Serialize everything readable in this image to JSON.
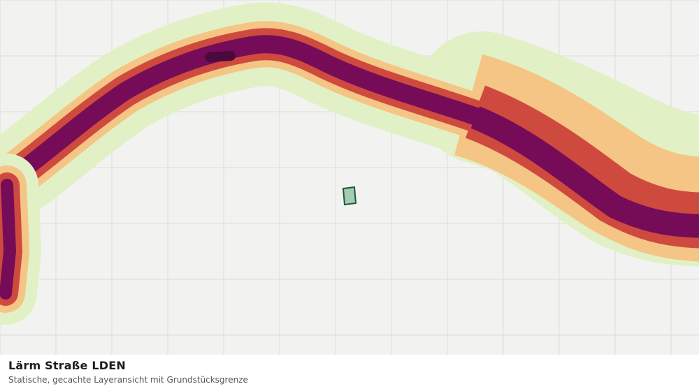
{
  "map": {
    "layer": "Lärm Straße LDEN",
    "noise_classes": [
      {
        "name": "lowest",
        "color": "#e2f0c6"
      },
      {
        "name": "low",
        "color": "#f4c584"
      },
      {
        "name": "medium",
        "color": "#cf4a3e"
      },
      {
        "name": "high",
        "color": "#760c58"
      },
      {
        "name": "highest",
        "color": "#4b0a3e"
      }
    ],
    "background_color": "#f2f3f1",
    "grid_color": "#dcdedb",
    "parcel": {
      "fill": "#a7cbb0",
      "stroke": "#1c5a37"
    }
  },
  "caption": {
    "title": "Lärm Straße LDEN",
    "subtitle": "Statische, gecachte Layeransicht mit Grundstücksgrenze"
  }
}
